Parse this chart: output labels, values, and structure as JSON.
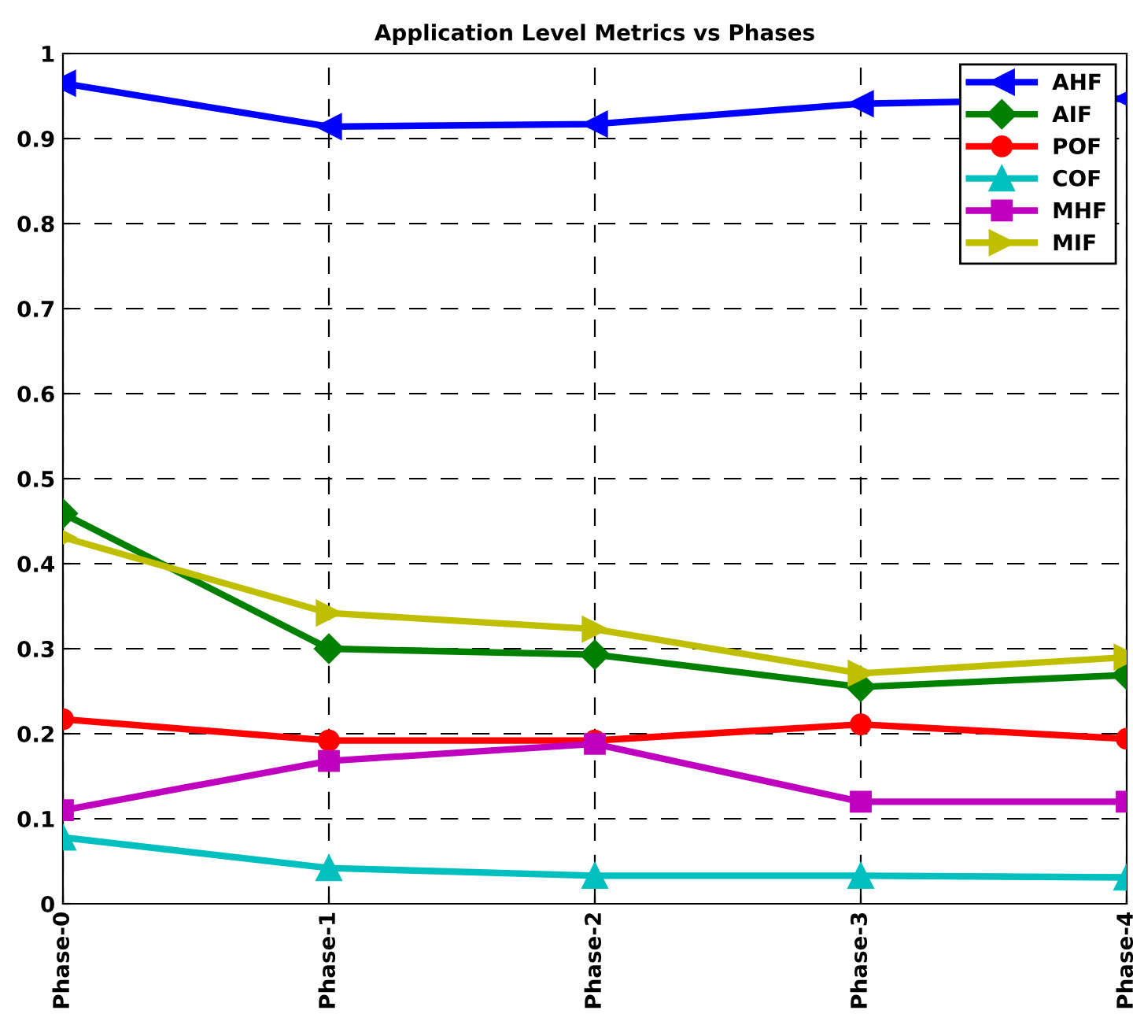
{
  "chart_data": {
    "type": "line",
    "title": "Application Level Metrics vs Phases",
    "categories": [
      "Phase-0",
      "Phase-1",
      "Phase-2",
      "Phase-3",
      "Phase-4"
    ],
    "ylim": [
      0,
      1
    ],
    "yticks": [
      0,
      0.1,
      0.2,
      0.3,
      0.4,
      0.5,
      0.6,
      0.7,
      0.8,
      0.9,
      1
    ],
    "grid": true,
    "legend": "top right",
    "line_style": "solid",
    "series": [
      {
        "name": "AHF",
        "color": "#0000ff",
        "marker": "triangle-left",
        "values": [
          0.965,
          0.914,
          0.917,
          0.941,
          0.947
        ]
      },
      {
        "name": "AIF",
        "color": "#008000",
        "marker": "diamond",
        "values": [
          0.459,
          0.3,
          0.293,
          0.255,
          0.269
        ]
      },
      {
        "name": "POF",
        "color": "#ff0000",
        "marker": "circle",
        "values": [
          0.217,
          0.192,
          0.192,
          0.211,
          0.194
        ]
      },
      {
        "name": "COF",
        "color": "#00bfbf",
        "marker": "triangle",
        "values": [
          0.078,
          0.042,
          0.033,
          0.033,
          0.031
        ]
      },
      {
        "name": "MHF",
        "color": "#bf00bf",
        "marker": "square",
        "values": [
          0.11,
          0.168,
          0.188,
          0.12,
          0.12
        ]
      },
      {
        "name": "MIF",
        "color": "#bfbf00",
        "marker": "triangle-right",
        "values": [
          0.431,
          0.342,
          0.323,
          0.271,
          0.29
        ]
      }
    ]
  }
}
